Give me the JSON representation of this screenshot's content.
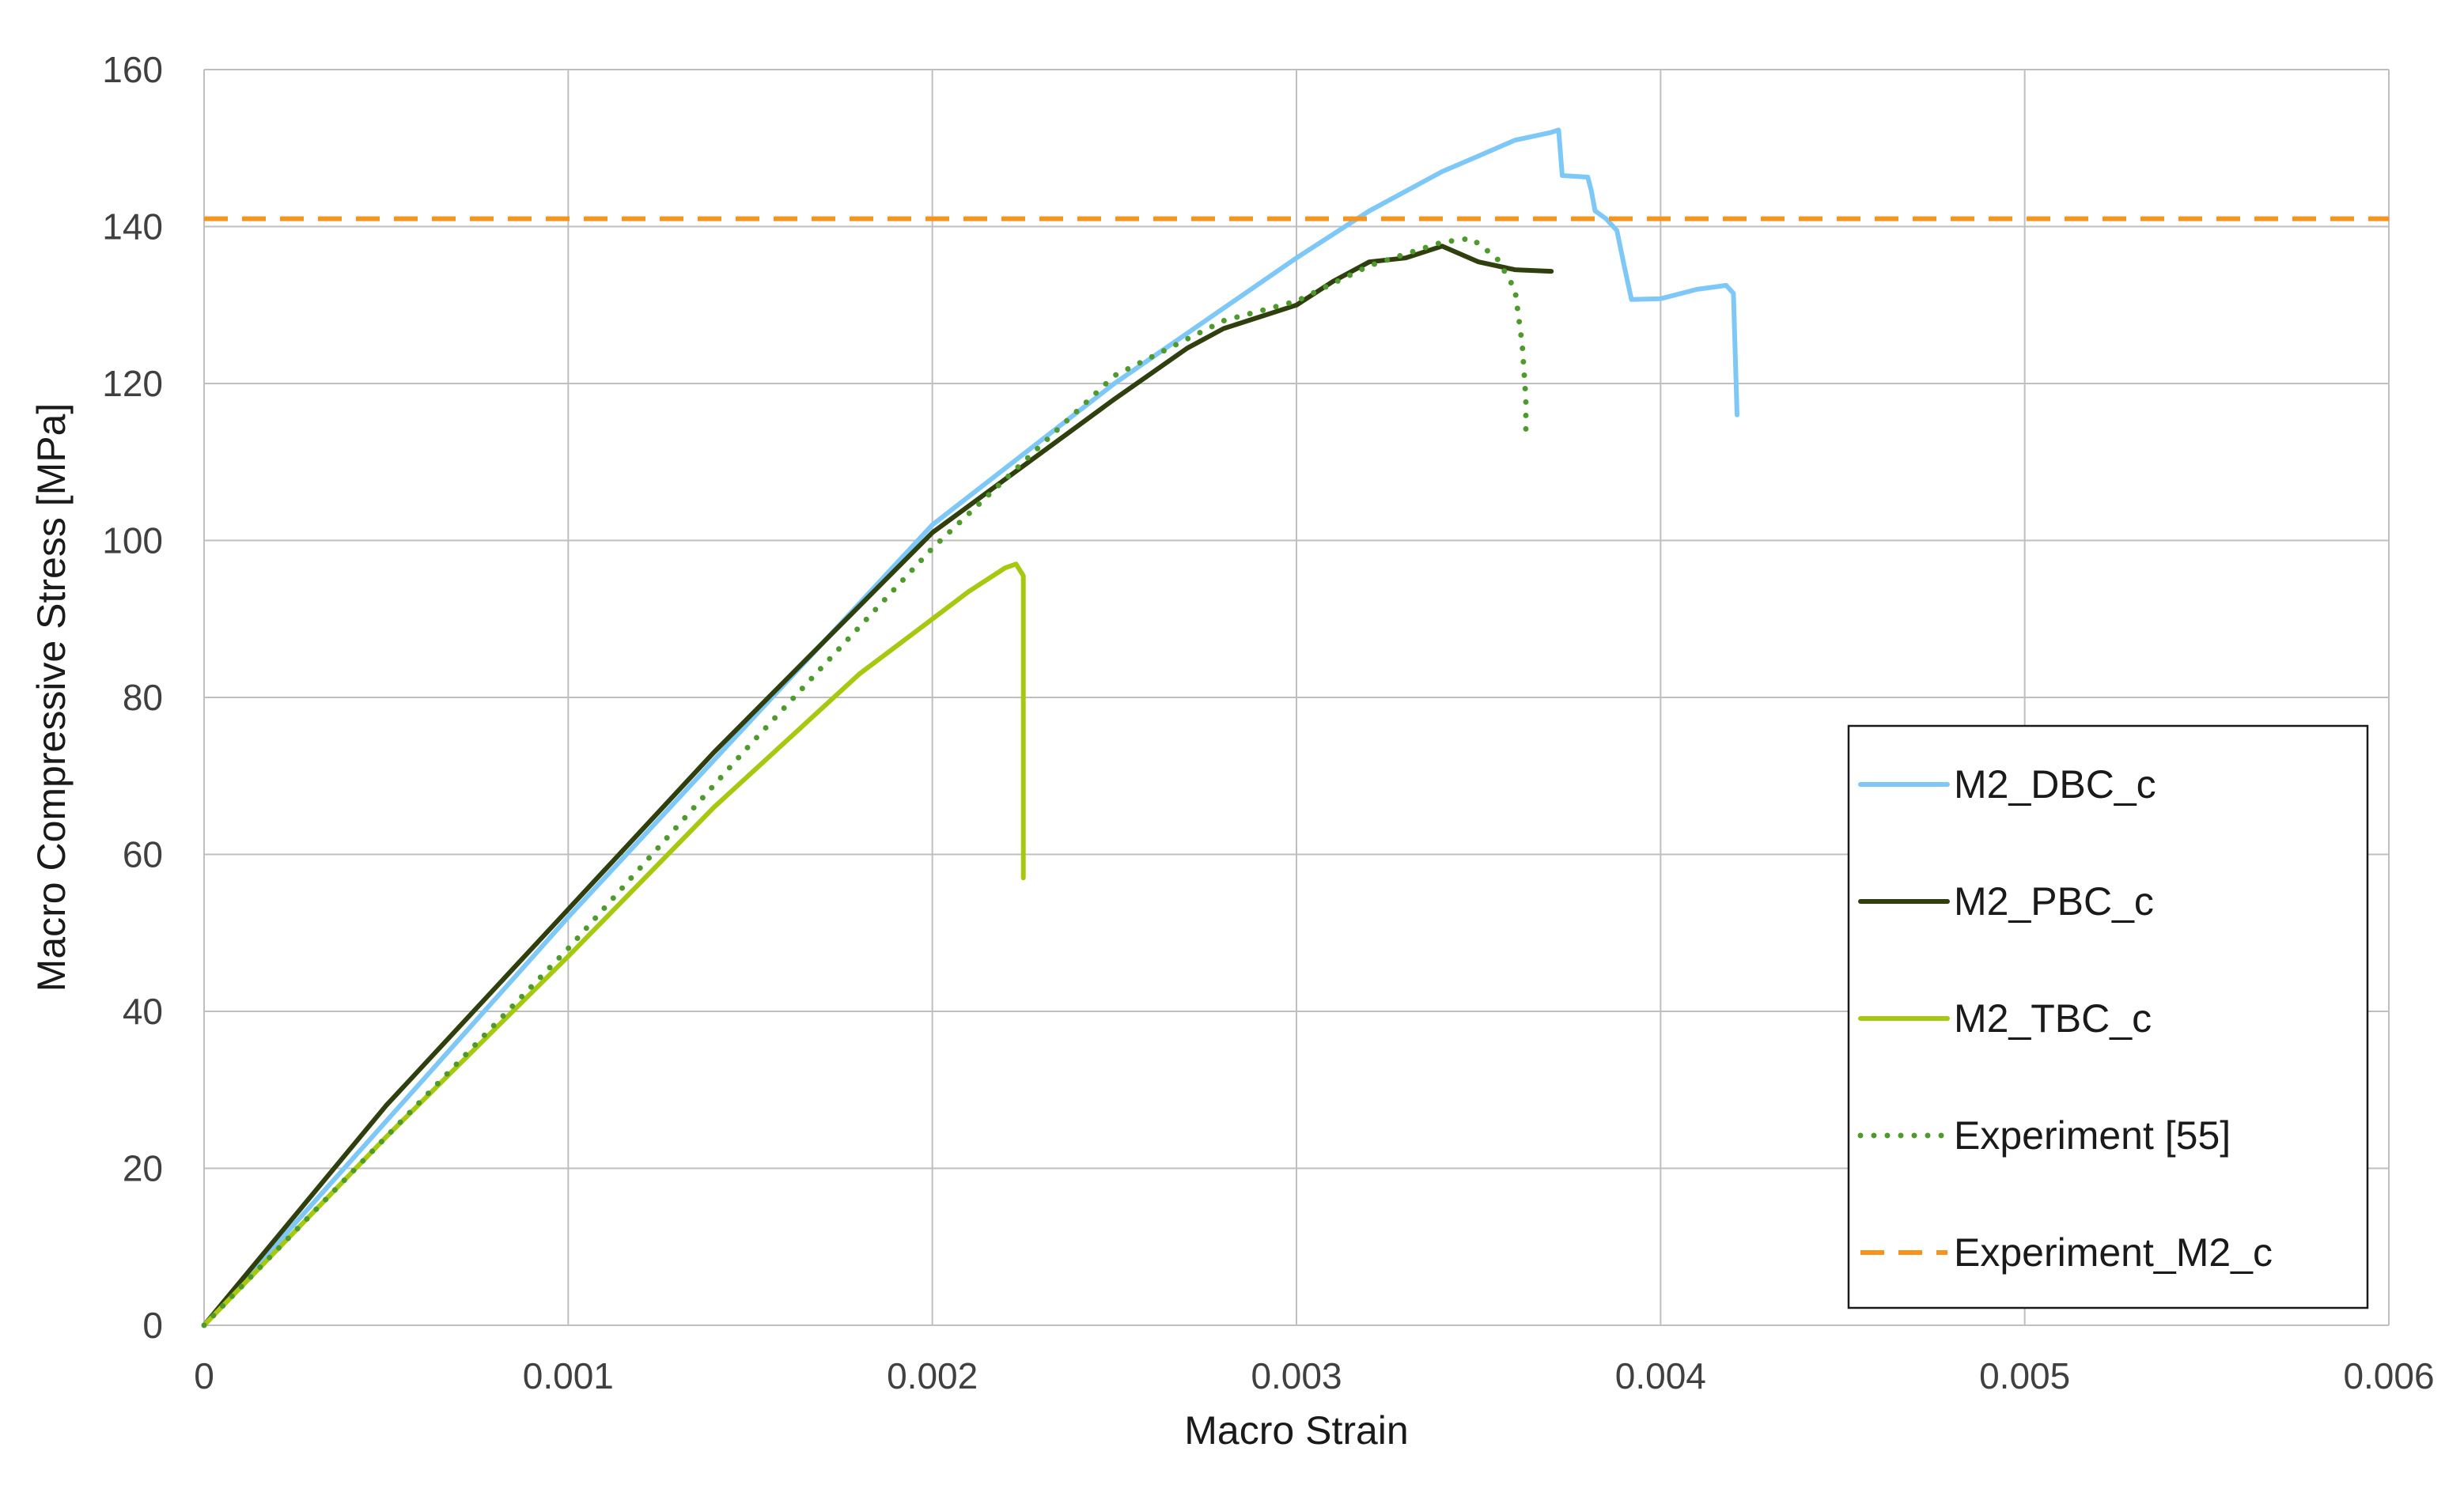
{
  "chart_data": {
    "type": "line",
    "xlabel": "Macro Strain",
    "ylabel": "Macro Compressive Stress [MPa]",
    "xlim": [
      0,
      0.006
    ],
    "ylim": [
      0,
      160
    ],
    "x_ticks": [
      0,
      0.001,
      0.002,
      0.003,
      0.004,
      0.005,
      0.006
    ],
    "x_tick_labels": [
      "0",
      "0.001",
      "0.002",
      "0.003",
      "0.004",
      "0.005",
      "0.006"
    ],
    "y_ticks": [
      0,
      20,
      40,
      60,
      80,
      100,
      120,
      140,
      160
    ],
    "y_tick_labels": [
      "0",
      "20",
      "40",
      "60",
      "80",
      "100",
      "120",
      "140",
      "160"
    ],
    "grid": true,
    "legend_position": "bottom-right",
    "series": [
      {
        "name": "M2_DBC_c",
        "color": "#7EC8F8",
        "style": "solid",
        "x": [
          0,
          0.0005,
          0.001,
          0.0015,
          0.002,
          0.0025,
          0.003,
          0.0032,
          0.0034,
          0.0035,
          0.0036,
          0.0037,
          0.00372,
          0.00373,
          0.0038,
          0.00381,
          0.00382,
          0.00385,
          0.00388,
          0.0039,
          0.00392,
          0.004,
          0.0041,
          0.00418,
          0.0042,
          0.00421
        ],
        "y": [
          0,
          26,
          52,
          77,
          102,
          120,
          136,
          142,
          147,
          149,
          151,
          152,
          152.3,
          146.5,
          146.3,
          144.5,
          142,
          141,
          139.5,
          135,
          130.7,
          130.8,
          132,
          132.5,
          131.5,
          116
        ]
      },
      {
        "name": "M2_PBC_c",
        "color": "#2F3F0D",
        "style": "solid",
        "x": [
          0,
          0.0005,
          0.001,
          0.0014,
          0.002,
          0.0025,
          0.0027,
          0.0028,
          0.0029,
          0.003,
          0.0031,
          0.0032,
          0.0033,
          0.0034,
          0.0035,
          0.0036,
          0.0037
        ],
        "y": [
          0,
          28,
          53,
          73,
          101,
          118,
          124.5,
          127,
          128.5,
          130,
          133,
          135.5,
          136,
          137.5,
          135.5,
          134.5,
          134.3
        ]
      },
      {
        "name": "M2_TBC_c",
        "color": "#A6C80F",
        "style": "solid",
        "x": [
          0,
          0.0005,
          0.001,
          0.0014,
          0.0018,
          0.002,
          0.0021,
          0.0022,
          0.00223,
          0.00225,
          0.00225
        ],
        "y": [
          0,
          24,
          47,
          66,
          83,
          90,
          93.5,
          96.5,
          97,
          95.5,
          57
        ]
      },
      {
        "name": "Experiment [55]",
        "color": "#4E9A2A",
        "style": "dotted",
        "x": [
          0,
          0.0005,
          0.001,
          0.0015,
          0.002,
          0.0025,
          0.0028,
          0.003,
          0.0032,
          0.0034,
          0.00348,
          0.00355,
          0.0036,
          0.00362,
          0.00363,
          0.00363
        ],
        "y": [
          0,
          24,
          48,
          74,
          99,
          121,
          128,
          130.5,
          135,
          138,
          138.5,
          136,
          132,
          125,
          118,
          113
        ]
      },
      {
        "name": "Experiment_M2_c",
        "color": "#F7941D",
        "style": "dashed",
        "x": [
          0,
          0.006
        ],
        "y": [
          141,
          141
        ]
      }
    ]
  }
}
